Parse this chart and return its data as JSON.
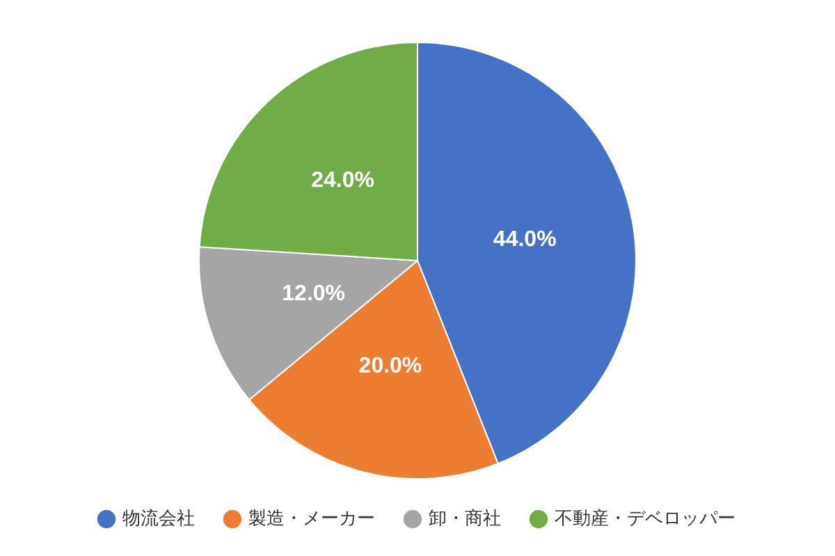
{
  "chart_data": {
    "type": "pie",
    "categories": [
      "物流会社",
      "製造・メーカー",
      "卸・商社",
      "不動産・デベロッパー"
    ],
    "values": [
      44,
      20,
      12,
      24
    ],
    "colors": [
      "#4472c4",
      "#ed7d31",
      "#a5a5a5",
      "#70ad47"
    ],
    "value_labels": [
      "44.0%",
      "20.0%",
      "12.0%",
      "24.0%"
    ],
    "legend": "bottom"
  }
}
